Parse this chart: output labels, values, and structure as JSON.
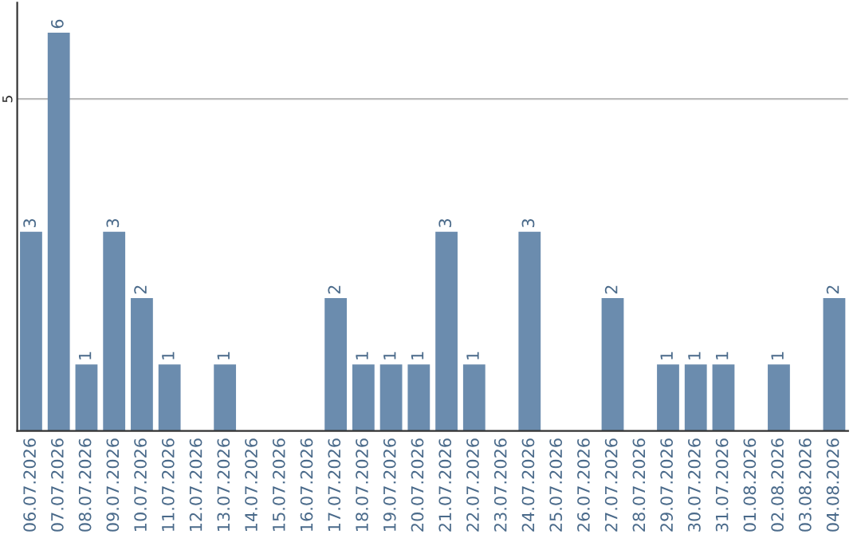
{
  "chart_data": {
    "type": "bar",
    "categories": [
      "06.07.2026",
      "07.07.2026",
      "08.07.2026",
      "09.07.2026",
      "10.07.2026",
      "11.07.2026",
      "12.07.2026",
      "13.07.2026",
      "14.07.2026",
      "15.07.2026",
      "16.07.2026",
      "17.07.2026",
      "18.07.2026",
      "19.07.2026",
      "20.07.2026",
      "21.07.2026",
      "22.07.2026",
      "23.07.2026",
      "24.07.2026",
      "25.07.2026",
      "26.07.2026",
      "27.07.2026",
      "28.07.2026",
      "29.07.2026",
      "30.07.2026",
      "31.07.2026",
      "01.08.2026",
      "02.08.2026",
      "03.08.2026",
      "04.08.2026"
    ],
    "values": [
      3,
      6,
      1,
      3,
      2,
      1,
      null,
      1,
      null,
      null,
      null,
      2,
      1,
      1,
      1,
      3,
      1,
      null,
      3,
      null,
      null,
      2,
      null,
      1,
      1,
      1,
      null,
      1,
      null,
      2
    ],
    "value_labels": [
      "3",
      "6",
      "1",
      "3",
      "2",
      "1",
      null,
      "1",
      null,
      null,
      null,
      "2",
      "1",
      "1",
      "1",
      "3",
      "1",
      null,
      "3",
      null,
      null,
      "2",
      null,
      "1",
      "1",
      "1",
      null,
      "1",
      null,
      "2"
    ],
    "color": "#6b8cae",
    "ylim": [
      0,
      6.45
    ],
    "yticks": [
      5
    ],
    "grid": "y",
    "legend": false
  }
}
